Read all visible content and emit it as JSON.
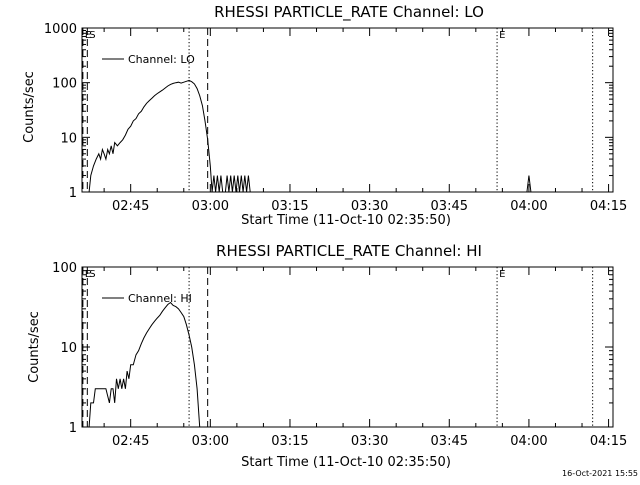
{
  "colors": {
    "background": "#ffffff",
    "ink": "#000000"
  },
  "footer_timestamp": "16-Oct-2021 15:55",
  "chart_data": [
    {
      "type": "line",
      "title": "RHESSI PARTICLE_RATE Channel: LO",
      "xlabel": "Start Time (11-Oct-10 02:35:50)",
      "ylabel": "Counts/sec",
      "y_scale": "log",
      "ylim": [
        1,
        1000
      ],
      "y_ticks": [
        1,
        10,
        100,
        1000
      ],
      "y_tick_labels": [
        "1",
        "10",
        "100",
        "1000"
      ],
      "xlim": [
        "02:35:50",
        "04:15:50"
      ],
      "x_ticks": [
        "02:45",
        "03:00",
        "03:15",
        "03:30",
        "03:45",
        "04:00",
        "04:15"
      ],
      "legend": "Channel: LO",
      "markers": [
        {
          "label": "E",
          "time": "02:36:00",
          "style": "dashed"
        },
        {
          "label": "S",
          "time": "02:36:50",
          "style": "dashed"
        },
        {
          "label": "",
          "time": "02:56:00",
          "style": "dotted"
        },
        {
          "label": "",
          "time": "02:59:30",
          "style": "dashed"
        },
        {
          "label": "E",
          "time": "03:54:00",
          "style": "dotted"
        },
        {
          "label": "",
          "time": "04:12:00",
          "style": "dotted"
        }
      ],
      "series": [
        {
          "name": "Channel: LO",
          "points": [
            [
              "02:37:10",
              1
            ],
            [
              "02:37:30",
              2
            ],
            [
              "02:38:00",
              3
            ],
            [
              "02:38:30",
              4
            ],
            [
              "02:39:00",
              5
            ],
            [
              "02:39:20",
              4
            ],
            [
              "02:39:40",
              6
            ],
            [
              "02:40:00",
              5
            ],
            [
              "02:40:20",
              4
            ],
            [
              "02:40:40",
              6
            ],
            [
              "02:41:00",
              5
            ],
            [
              "02:41:20",
              7
            ],
            [
              "02:41:40",
              5
            ],
            [
              "02:42:00",
              8
            ],
            [
              "02:42:30",
              7
            ],
            [
              "02:43:00",
              8
            ],
            [
              "02:43:30",
              9
            ],
            [
              "02:44:00",
              11
            ],
            [
              "02:44:30",
              14
            ],
            [
              "02:45:00",
              16
            ],
            [
              "02:45:30",
              20
            ],
            [
              "02:46:00",
              22
            ],
            [
              "02:46:30",
              27
            ],
            [
              "02:47:00",
              30
            ],
            [
              "02:47:30",
              36
            ],
            [
              "02:48:00",
              42
            ],
            [
              "02:48:30",
              47
            ],
            [
              "02:49:00",
              52
            ],
            [
              "02:49:30",
              58
            ],
            [
              "02:50:00",
              63
            ],
            [
              "02:50:30",
              68
            ],
            [
              "02:51:00",
              73
            ],
            [
              "02:51:30",
              80
            ],
            [
              "02:52:00",
              87
            ],
            [
              "02:52:30",
              93
            ],
            [
              "02:53:00",
              97
            ],
            [
              "02:53:30",
              100
            ],
            [
              "02:54:00",
              102
            ],
            [
              "02:54:30",
              98
            ],
            [
              "02:55:00",
              102
            ],
            [
              "02:55:30",
              106
            ],
            [
              "02:56:00",
              110
            ],
            [
              "02:56:30",
              104
            ],
            [
              "02:57:00",
              95
            ],
            [
              "02:57:30",
              78
            ],
            [
              "02:58:00",
              58
            ],
            [
              "02:58:30",
              38
            ],
            [
              "02:59:00",
              20
            ],
            [
              "02:59:30",
              9
            ],
            [
              "03:00:00",
              3
            ],
            [
              "03:00:20",
              1
            ],
            [
              "03:00:40",
              2
            ],
            [
              "03:01:00",
              1
            ],
            [
              "03:01:20",
              2
            ],
            [
              "03:01:40",
              1
            ],
            [
              "03:02:00",
              2
            ],
            [
              "03:02:20",
              1
            ],
            [
              "03:02:50",
              1
            ],
            [
              "03:03:10",
              2
            ],
            [
              "03:03:30",
              1
            ],
            [
              "03:03:50",
              2
            ],
            [
              "03:04:10",
              1
            ],
            [
              "03:04:30",
              2
            ],
            [
              "03:04:50",
              1
            ],
            [
              "03:05:10",
              2
            ],
            [
              "03:05:30",
              1
            ],
            [
              "03:05:50",
              2
            ],
            [
              "03:06:10",
              1
            ],
            [
              "03:06:30",
              2
            ],
            [
              "03:06:50",
              1
            ],
            [
              "03:07:10",
              2
            ],
            [
              "03:07:30",
              1
            ]
          ],
          "spikes": [
            [
              "04:00:00",
              2
            ]
          ]
        }
      ]
    },
    {
      "type": "line",
      "title": "RHESSI PARTICLE_RATE Channel: HI",
      "xlabel": "Start Time (11-Oct-10 02:35:50)",
      "ylabel": "Counts/sec",
      "y_scale": "log",
      "ylim": [
        1,
        100
      ],
      "y_ticks": [
        1,
        10,
        100
      ],
      "y_tick_labels": [
        "1",
        "10",
        "100"
      ],
      "xlim": [
        "02:35:50",
        "04:15:50"
      ],
      "x_ticks": [
        "02:45",
        "03:00",
        "03:15",
        "03:30",
        "03:45",
        "04:00",
        "04:15"
      ],
      "legend": "Channel: HI",
      "markers": [
        {
          "label": "E",
          "time": "02:36:00",
          "style": "dashed"
        },
        {
          "label": "S",
          "time": "02:36:50",
          "style": "dashed"
        },
        {
          "label": "",
          "time": "02:56:00",
          "style": "dotted"
        },
        {
          "label": "",
          "time": "02:59:30",
          "style": "dashed"
        },
        {
          "label": "E",
          "time": "03:54:00",
          "style": "dotted"
        },
        {
          "label": "",
          "time": "04:12:00",
          "style": "dotted"
        }
      ],
      "series": [
        {
          "name": "Channel: HI",
          "points": [
            [
              "02:37:10",
              1
            ],
            [
              "02:37:30",
              2
            ],
            [
              "02:38:00",
              2
            ],
            [
              "02:38:20",
              3
            ],
            [
              "02:39:00",
              3
            ],
            [
              "02:39:40",
              3
            ],
            [
              "02:40:20",
              3
            ],
            [
              "02:41:00",
              2
            ],
            [
              "02:41:20",
              3
            ],
            [
              "02:41:40",
              3
            ],
            [
              "02:42:00",
              2
            ],
            [
              "02:42:20",
              4
            ],
            [
              "02:42:40",
              3
            ],
            [
              "02:43:00",
              4
            ],
            [
              "02:43:20",
              3
            ],
            [
              "02:43:40",
              4
            ],
            [
              "02:44:00",
              3
            ],
            [
              "02:44:20",
              5
            ],
            [
              "02:44:40",
              4
            ],
            [
              "02:45:00",
              6
            ],
            [
              "02:45:30",
              6
            ],
            [
              "02:46:00",
              8
            ],
            [
              "02:46:30",
              9
            ],
            [
              "02:47:00",
              11
            ],
            [
              "02:47:30",
              13
            ],
            [
              "02:48:00",
              15
            ],
            [
              "02:48:30",
              17
            ],
            [
              "02:49:00",
              19
            ],
            [
              "02:49:30",
              21
            ],
            [
              "02:50:00",
              23
            ],
            [
              "02:50:30",
              25
            ],
            [
              "02:51:00",
              28
            ],
            [
              "02:51:30",
              31
            ],
            [
              "02:52:00",
              34
            ],
            [
              "02:52:30",
              36
            ],
            [
              "02:53:00",
              33
            ],
            [
              "02:53:30",
              32
            ],
            [
              "02:54:00",
              30
            ],
            [
              "02:54:30",
              27
            ],
            [
              "02:55:00",
              24
            ],
            [
              "02:55:30",
              19
            ],
            [
              "02:56:00",
              14
            ],
            [
              "02:56:30",
              10
            ],
            [
              "02:57:00",
              6
            ],
            [
              "02:57:30",
              3
            ],
            [
              "02:58:00",
              1
            ]
          ],
          "spikes": []
        }
      ]
    }
  ]
}
